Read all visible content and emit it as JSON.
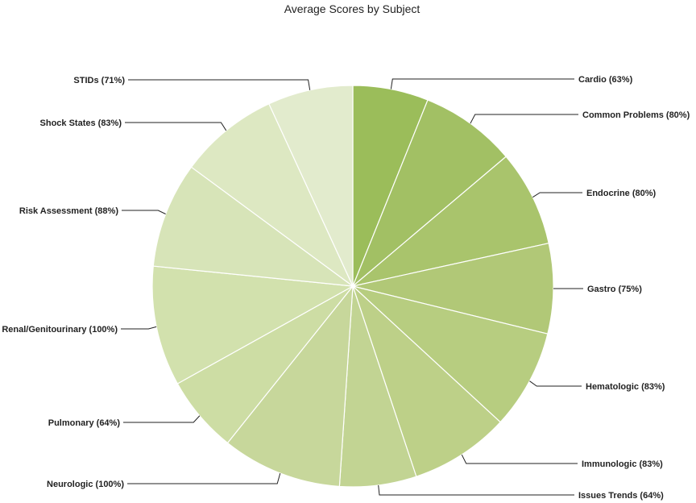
{
  "chart_data": {
    "type": "pie",
    "title": "Average Scores by Subject",
    "slices": [
      {
        "label": "Cardio (63%)",
        "name": "Cardio",
        "value": 63
      },
      {
        "label": "Common Problems (80%)",
        "name": "Common Problems",
        "value": 80
      },
      {
        "label": "Endocrine (80%)",
        "name": "Endocrine",
        "value": 80
      },
      {
        "label": "Gastro (75%)",
        "name": "Gastro",
        "value": 75
      },
      {
        "label": "Hematologic (83%)",
        "name": "Hematologic",
        "value": 83
      },
      {
        "label": "Immunologic (83%)",
        "name": "Immunologic",
        "value": 83
      },
      {
        "label": "Issues Trends (64%)",
        "name": "Issues Trends",
        "value": 64
      },
      {
        "label": "Neurologic (100%)",
        "name": "Neurologic",
        "value": 100
      },
      {
        "label": "Pulmonary (64%)",
        "name": "Pulmonary",
        "value": 64
      },
      {
        "label": "Renal/Genitourinary (100%)",
        "name": "Renal/Genitourinary",
        "value": 100
      },
      {
        "label": "Risk Assessment (88%)",
        "name": "Risk Assessment",
        "value": 88
      },
      {
        "label": "Shock States (83%)",
        "name": "Shock States",
        "value": 83
      },
      {
        "label": "STIDs (71%)",
        "name": "STIDs",
        "value": 71
      }
    ],
    "colors": [
      "#9bbd5a",
      "#a2c064",
      "#a9c46c",
      "#b1c877",
      "#b7cd80",
      "#bdd088",
      "#c2d493",
      "#c7d79b",
      "#cddda4",
      "#d2e1ad",
      "#d7e4b8",
      "#dde8c2",
      "#e2ebcd"
    ]
  }
}
